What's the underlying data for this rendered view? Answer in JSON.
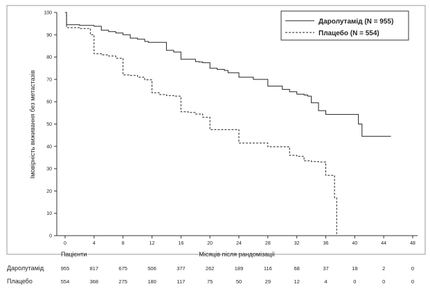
{
  "chart_data": {
    "type": "line",
    "xlabel": "Місяців після рандомізації",
    "ylabel": "Імовірність виживання без метастазів",
    "xlim": [
      0,
      48
    ],
    "ylim": [
      0,
      100
    ],
    "x_ticks": [
      "0",
      "4",
      "8",
      "12",
      "16",
      "20",
      "24",
      "28",
      "32",
      "36",
      "40",
      "44",
      "48"
    ],
    "y_ticks": [
      "0",
      "10",
      "20",
      "30",
      "40",
      "50",
      "60",
      "70",
      "80",
      "90",
      "100"
    ],
    "grid": false,
    "legend_position": "top-right",
    "series": [
      {
        "name": "Даролутамід (N = 955)",
        "style": "solid",
        "color": "#222222",
        "x": [
          0,
          0.2,
          2,
          4,
          5,
          6,
          7,
          8,
          9,
          10,
          11,
          11.5,
          14,
          15,
          16,
          18,
          18.5,
          19,
          20,
          21,
          22,
          22.5,
          24,
          26,
          28,
          29.5,
          30,
          31,
          32,
          33,
          33.5,
          34,
          35,
          36,
          40,
          40.5,
          41,
          42,
          44,
          45
        ],
        "y": [
          100,
          94.5,
          94.2,
          93.8,
          92,
          91.4,
          90.8,
          90,
          88.5,
          88,
          87,
          86.6,
          83,
          82.3,
          79,
          78,
          77.8,
          77.5,
          75,
          74.5,
          74,
          73,
          71,
          70,
          67,
          67,
          65.5,
          64.5,
          63.4,
          63,
          62.5,
          59.5,
          56,
          54.3,
          54.3,
          50,
          44.5,
          44.5,
          44.5,
          44.5
        ]
      },
      {
        "name": "Плацебо (N = 554)",
        "style": "dashed",
        "color": "#222222",
        "x": [
          0,
          0.2,
          2,
          3.5,
          4,
          5,
          6,
          7,
          8,
          9,
          10,
          11,
          12,
          13,
          14,
          15,
          16,
          17,
          18,
          19,
          20,
          21,
          22,
          23,
          24,
          26,
          28,
          30,
          31,
          32,
          33,
          34,
          35,
          36,
          37,
          37.2,
          37.5
        ],
        "y": [
          100,
          93.2,
          92.8,
          90,
          81.5,
          81,
          80.5,
          79.5,
          72,
          71.8,
          71,
          69.8,
          64,
          63.2,
          62.8,
          62.5,
          55.5,
          55.2,
          54.5,
          53,
          47.5,
          47.5,
          47.5,
          47.5,
          41.5,
          41.5,
          39.8,
          39.8,
          36,
          35.5,
          33.5,
          33.2,
          33,
          27,
          27,
          17,
          0
        ]
      }
    ]
  },
  "risk_table": {
    "header": "Пацієнти",
    "rows": [
      {
        "label": "Даролутамід",
        "values": [
          "955",
          "817",
          "675",
          "506",
          "377",
          "262",
          "189",
          "116",
          "68",
          "37",
          "18",
          "2",
          "0"
        ]
      },
      {
        "label": "Плацебо",
        "values": [
          "554",
          "368",
          "275",
          "180",
          "117",
          "75",
          "50",
          "29",
          "12",
          "4",
          "0",
          "0",
          "0"
        ]
      }
    ]
  }
}
